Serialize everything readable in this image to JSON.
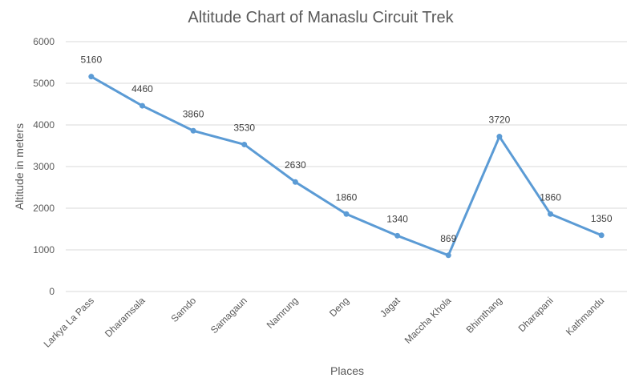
{
  "chart_data": {
    "type": "line",
    "title": "Altitude Chart of Manaslu Circuit Trek",
    "xlabel": "Places",
    "ylabel": "Altitude in meters",
    "categories": [
      "Larkya La Pass",
      "Dharamsala",
      "Samdo",
      "Samagaun",
      "Namrung",
      "Deng",
      "Jagat",
      "Maccha Khola",
      "Bhimthang",
      "Dharapani",
      "Kathmandu"
    ],
    "series": [
      {
        "name": "Altitude",
        "values": [
          5160,
          4460,
          3860,
          3530,
          2630,
          1860,
          1340,
          869,
          3720,
          1860,
          1350
        ],
        "color": "#5b9bd5"
      }
    ],
    "data_labels": [
      "5160",
      "4460",
      "3860",
      "3530",
      "2630",
      "1860",
      "1340",
      "869",
      "3720",
      "1860",
      "1350"
    ],
    "ylim": [
      0,
      6000
    ],
    "yticks": [
      "0",
      "1000",
      "2000",
      "3000",
      "4000",
      "5000",
      "6000"
    ],
    "grid": true,
    "legend": "none"
  }
}
